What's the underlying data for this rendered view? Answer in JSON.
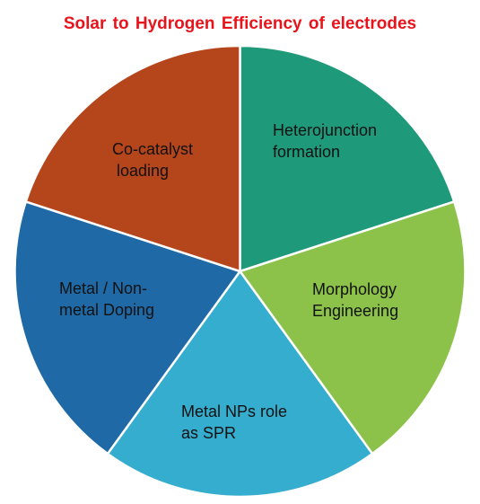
{
  "chart_data": {
    "type": "pie",
    "title": "Solar to Hydrogen  Efficiency  of electrodes",
    "slices": [
      {
        "label_lines": [
          "Heterojunction",
          "formation"
        ],
        "value": 20,
        "color": "#1e9a7a"
      },
      {
        "label_lines": [
          "Morphology",
          "Engineering"
        ],
        "value": 20,
        "color": "#8cc24a"
      },
      {
        "label_lines": [
          "Metal NPs role",
          "as SPR"
        ],
        "value": 20,
        "color": "#35adce"
      },
      {
        "label_lines": [
          "Metal / Non-",
          "metal Doping"
        ],
        "value": 20,
        "color": "#1f6aa6"
      },
      {
        "label_lines": [
          "Co-catalyst",
          " loading"
        ],
        "value": 20,
        "color": "#b5451b"
      }
    ],
    "legend": "none"
  }
}
